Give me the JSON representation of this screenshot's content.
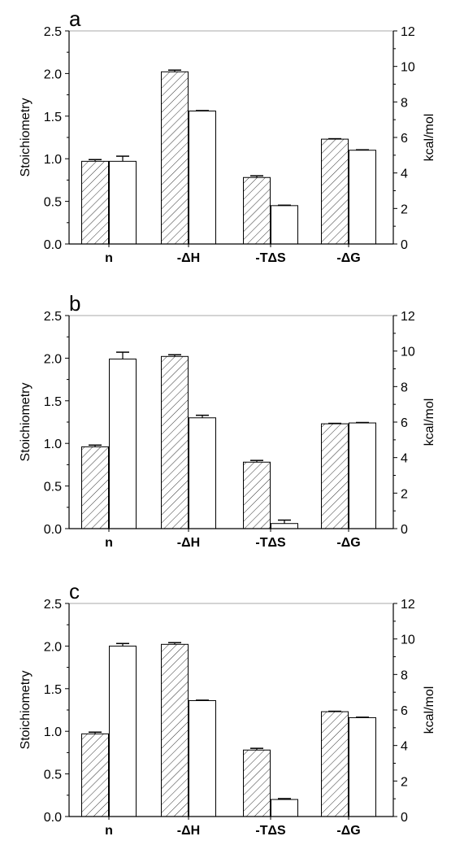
{
  "chart_data": [
    {
      "type": "bar",
      "panel_label": "a",
      "categories": [
        "n",
        "-ΔH",
        "-TΔS",
        "-ΔG"
      ],
      "ylabel": "Stoichiometry",
      "y2label": "kcal/mol",
      "ylim": [
        0,
        2.5
      ],
      "y2lim": [
        0,
        12
      ],
      "yticks": [
        "0.0",
        "0.5",
        "1.0",
        "1.5",
        "2.0",
        "2.5"
      ],
      "y2ticks": [
        "0",
        "2",
        "4",
        "6",
        "8",
        "10",
        "12"
      ],
      "series": [
        {
          "fill": "hatched",
          "values": [
            0.97,
            2.02,
            0.78,
            1.23
          ],
          "errors": [
            0.02,
            0.02,
            0.02,
            0.005
          ]
        },
        {
          "fill": "white",
          "values": [
            0.97,
            1.56,
            0.45,
            1.1
          ],
          "errors": [
            0.06,
            0.005,
            0.005,
            0.005
          ]
        }
      ],
      "grid": "top border only"
    },
    {
      "type": "bar",
      "panel_label": "b",
      "categories": [
        "n",
        "-ΔH",
        "-TΔS",
        "-ΔG"
      ],
      "ylabel": "Stoichiometry",
      "y2label": "kcal/mol",
      "ylim": [
        0,
        2.5
      ],
      "y2lim": [
        0,
        12
      ],
      "yticks": [
        "0.0",
        "0.5",
        "1.0",
        "1.5",
        "2.0",
        "2.5"
      ],
      "y2ticks": [
        "0",
        "2",
        "4",
        "6",
        "8",
        "10",
        "12"
      ],
      "series": [
        {
          "fill": "hatched",
          "values": [
            0.96,
            2.02,
            0.78,
            1.23
          ],
          "errors": [
            0.02,
            0.02,
            0.02,
            0.005
          ]
        },
        {
          "fill": "white",
          "values": [
            1.99,
            1.3,
            0.06,
            1.24
          ],
          "errors": [
            0.08,
            0.03,
            0.04,
            0.005
          ]
        }
      ],
      "grid": "top border only"
    },
    {
      "type": "bar",
      "panel_label": "c",
      "categories": [
        "n",
        "-ΔH",
        "-TΔS",
        "-ΔG"
      ],
      "ylabel": "Stoichiometry",
      "y2label": "kcal/mol",
      "ylim": [
        0,
        2.5
      ],
      "y2lim": [
        0,
        12
      ],
      "yticks": [
        "0.0",
        "0.5",
        "1.0",
        "1.5",
        "2.0",
        "2.5"
      ],
      "y2ticks": [
        "0",
        "2",
        "4",
        "6",
        "8",
        "10",
        "12"
      ],
      "series": [
        {
          "fill": "hatched",
          "values": [
            0.97,
            2.02,
            0.78,
            1.23
          ],
          "errors": [
            0.02,
            0.02,
            0.02,
            0.005
          ]
        },
        {
          "fill": "white",
          "values": [
            2.0,
            1.36,
            0.2,
            1.16
          ],
          "errors": [
            0.03,
            0.005,
            0.01,
            0.005
          ]
        }
      ],
      "grid": "top border only"
    }
  ]
}
